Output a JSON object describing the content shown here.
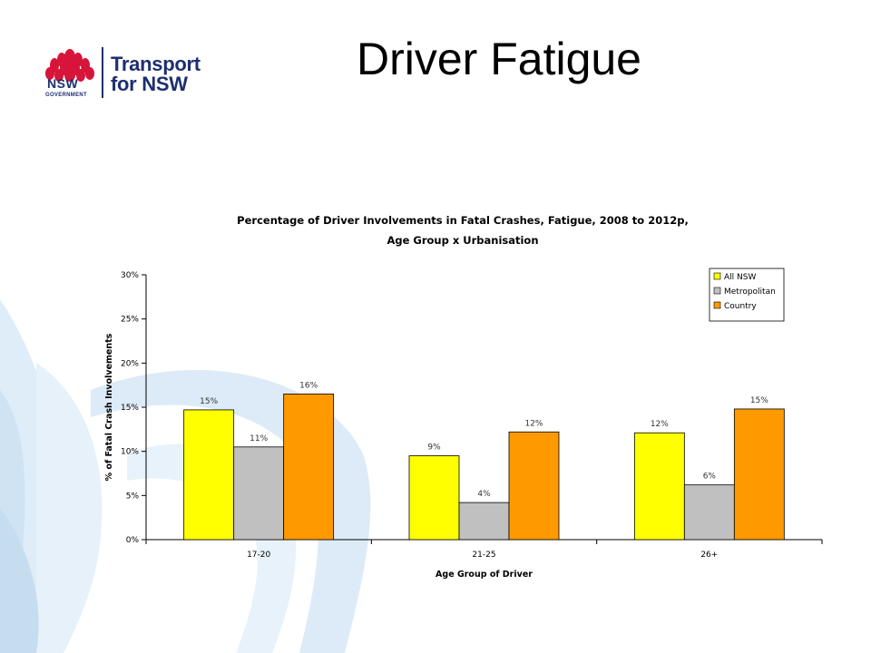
{
  "slide": {
    "title": "Driver Fatigue"
  },
  "logo": {
    "mark_text": "NSW",
    "mark_subtext": "GOVERNMENT",
    "brand_line1": "Transport",
    "brand_line2": "for NSW"
  },
  "colors": {
    "waratah_red": "#d7153a",
    "nsw_navy": "#1d2f6f",
    "bg_curve": "#d6e8f5"
  },
  "chart_data": {
    "type": "bar",
    "title_line1": "Percentage of Driver Involvements in Fatal Crashes, Fatigue, 2008 to 2012p,",
    "title_line2": "Age Group x Urbanisation",
    "xlabel": "Age Group of Driver",
    "ylabel": "% of Fatal Crash Involvements",
    "categories": [
      "17-20",
      "21-25",
      "26+"
    ],
    "ylim": [
      0,
      30
    ],
    "yticks": [
      "0%",
      "5%",
      "10%",
      "15%",
      "20%",
      "25%",
      "30%"
    ],
    "legend_position": "top-right",
    "series": [
      {
        "name": "All NSW",
        "color": "#ffff00",
        "values": [
          14.7,
          9.5,
          12.1
        ],
        "labels": [
          "15%",
          "9%",
          "12%"
        ]
      },
      {
        "name": "Metropolitan",
        "color": "#c0c0c0",
        "values": [
          10.5,
          4.2,
          6.2
        ],
        "labels": [
          "11%",
          "4%",
          "6%"
        ]
      },
      {
        "name": "Country",
        "color": "#ff9900",
        "values": [
          16.5,
          12.2,
          14.8
        ],
        "labels": [
          "16%",
          "12%",
          "15%"
        ]
      }
    ]
  }
}
